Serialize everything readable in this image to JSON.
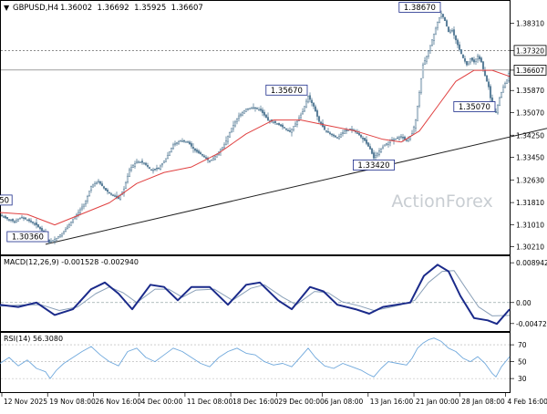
{
  "header": {
    "symbol": "GBPUSD,H4",
    "ohlc": "1.36002  1.36692  1.35925  1.36607"
  },
  "watermark": "ActionForex",
  "colors": {
    "candle": "#5a7f99",
    "ma": "#e04040",
    "macd": "#1a2a8a",
    "macd_signal": "#8aa0b8",
    "rsi": "#6fa8dc",
    "trendline": "#222222",
    "label_border": "#1a2a8a"
  },
  "chart_data": [
    {
      "type": "candlestick",
      "panel": "price",
      "title": "GBPUSD,H4",
      "ylim": [
        1.3003,
        1.3895
      ],
      "y_ticks": [
        "1.38310",
        "1.37320",
        "1.36607",
        "1.35870",
        "1.35070",
        "1.34250",
        "1.33450",
        "1.32630",
        "1.31810",
        "1.31010",
        "1.30210"
      ],
      "highlighted_ticks": [
        "1.37320",
        "1.36607"
      ],
      "x_labels": [
        "12 Nov 2025",
        "19 Nov 08:00",
        "26 Nov 16:00",
        "4 Dec 00:00",
        "11 Dec 08:00",
        "18 Dec 16:00",
        "29 Dec 00:00",
        "6 Jan 08:00",
        "13 Jan 16:00",
        "21 Jan 00:00",
        "28 Jan 08:00",
        "4 Feb 16:00"
      ],
      "price_path": [
        [
          0,
          1.3135
        ],
        [
          8,
          1.3122
        ],
        [
          16,
          1.3112
        ],
        [
          24,
          1.3128
        ],
        [
          32,
          1.3115
        ],
        [
          40,
          1.31
        ],
        [
          48,
          1.3072
        ],
        [
          54,
          1.3036
        ],
        [
          62,
          1.3052
        ],
        [
          70,
          1.3075
        ],
        [
          78,
          1.311
        ],
        [
          86,
          1.3145
        ],
        [
          94,
          1.3185
        ],
        [
          100,
          1.324
        ],
        [
          108,
          1.3258
        ],
        [
          116,
          1.3225
        ],
        [
          124,
          1.3208
        ],
        [
          130,
          1.3195
        ],
        [
          136,
          1.323
        ],
        [
          142,
          1.33
        ],
        [
          150,
          1.333
        ],
        [
          158,
          1.3325
        ],
        [
          166,
          1.3298
        ],
        [
          174,
          1.3305
        ],
        [
          182,
          1.334
        ],
        [
          190,
          1.339
        ],
        [
          198,
          1.3405
        ],
        [
          206,
          1.34
        ],
        [
          214,
          1.337
        ],
        [
          222,
          1.3352
        ],
        [
          230,
          1.333
        ],
        [
          238,
          1.3355
        ],
        [
          246,
          1.339
        ],
        [
          254,
          1.345
        ],
        [
          262,
          1.3495
        ],
        [
          270,
          1.352
        ],
        [
          278,
          1.3525
        ],
        [
          286,
          1.3515
        ],
        [
          294,
          1.348
        ],
        [
          302,
          1.347
        ],
        [
          310,
          1.3455
        ],
        [
          318,
          1.3438
        ],
        [
          326,
          1.3475
        ],
        [
          332,
          1.351
        ],
        [
          338,
          1.3567
        ],
        [
          344,
          1.353
        ],
        [
          350,
          1.3475
        ],
        [
          356,
          1.3445
        ],
        [
          362,
          1.343
        ],
        [
          370,
          1.3415
        ],
        [
          378,
          1.344
        ],
        [
          386,
          1.3448
        ],
        [
          394,
          1.3425
        ],
        [
          400,
          1.3405
        ],
        [
          406,
          1.3375
        ],
        [
          410,
          1.3342
        ],
        [
          416,
          1.3368
        ],
        [
          422,
          1.339
        ],
        [
          428,
          1.3405
        ],
        [
          434,
          1.3412
        ],
        [
          440,
          1.342
        ],
        [
          446,
          1.3405
        ],
        [
          452,
          1.343
        ],
        [
          456,
          1.348
        ],
        [
          460,
          1.358
        ],
        [
          464,
          1.368
        ],
        [
          468,
          1.371
        ],
        [
          472,
          1.375
        ],
        [
          476,
          1.379
        ],
        [
          480,
          1.3835
        ],
        [
          484,
          1.3867
        ],
        [
          488,
          1.384
        ],
        [
          492,
          1.38
        ],
        [
          496,
          1.3805
        ],
        [
          500,
          1.377
        ],
        [
          504,
          1.3735
        ],
        [
          508,
          1.3705
        ],
        [
          512,
          1.368
        ],
        [
          516,
          1.3702
        ],
        [
          520,
          1.369
        ],
        [
          524,
          1.3712
        ],
        [
          528,
          1.369
        ],
        [
          532,
          1.364
        ],
        [
          536,
          1.36
        ],
        [
          540,
          1.352
        ],
        [
          544,
          1.3507
        ],
        [
          548,
          1.356
        ],
        [
          552,
          1.36
        ],
        [
          556,
          1.3625
        ],
        [
          559,
          1.3661
        ]
      ],
      "moving_average": [
        [
          0,
          1.3145
        ],
        [
          30,
          1.3138
        ],
        [
          60,
          1.31
        ],
        [
          90,
          1.314
        ],
        [
          120,
          1.318
        ],
        [
          150,
          1.325
        ],
        [
          180,
          1.329
        ],
        [
          210,
          1.331
        ],
        [
          240,
          1.336
        ],
        [
          270,
          1.343
        ],
        [
          300,
          1.348
        ],
        [
          330,
          1.348
        ],
        [
          360,
          1.346
        ],
        [
          390,
          1.344
        ],
        [
          420,
          1.341
        ],
        [
          440,
          1.34
        ],
        [
          460,
          1.344
        ],
        [
          480,
          1.353
        ],
        [
          500,
          1.362
        ],
        [
          520,
          1.366
        ],
        [
          540,
          1.366
        ],
        [
          559,
          1.3638
        ]
      ],
      "trendline": [
        [
          50,
          1.303
        ],
        [
          600,
          1.345
        ]
      ],
      "reference_lines": [
        1.3732,
        1.3661
      ],
      "annotations": [
        {
          "label": "1.38670",
          "x": 484,
          "y": 1.3867,
          "position": "left"
        },
        {
          "label": "1.35670",
          "x": 338,
          "y": 1.3567,
          "position": "left"
        },
        {
          "label": "1.33420",
          "x": 410,
          "y": 1.3342,
          "position": "below"
        },
        {
          "label": "1.35070",
          "x": 544,
          "y": 1.3507,
          "position": "left"
        },
        {
          "label": "1.30360",
          "x": 54,
          "y": 1.3036,
          "position": "left"
        },
        {
          "label": "50",
          "x": 0,
          "y": 1.319,
          "position": "edge"
        }
      ]
    },
    {
      "type": "line",
      "panel": "indicator",
      "title": "MACD(12,26,9) -0.001528 -0.002940",
      "ylim": [
        -0.0062,
        0.01
      ],
      "y_ticks": [
        "0.008942",
        "0.00",
        "-0.004725"
      ],
      "series": [
        {
          "values": [
            [
              0,
              -0.0005
            ],
            [
              20,
              -0.001
            ],
            [
              40,
              0.0
            ],
            [
              60,
              -0.0028
            ],
            [
              80,
              -0.0015
            ],
            [
              100,
              0.003
            ],
            [
              115,
              0.0045
            ],
            [
              130,
              0.002
            ],
            [
              145,
              -0.0015
            ],
            [
              165,
              0.004
            ],
            [
              180,
              0.0035
            ],
            [
              195,
              0.0005
            ],
            [
              210,
              0.0035
            ],
            [
              230,
              0.0035
            ],
            [
              250,
              -0.0005
            ],
            [
              270,
              0.004
            ],
            [
              285,
              0.0045
            ],
            [
              305,
              0.0005
            ],
            [
              320,
              -0.0015
            ],
            [
              340,
              0.0035
            ],
            [
              355,
              0.0025
            ],
            [
              370,
              -0.0005
            ],
            [
              390,
              -0.0015
            ],
            [
              405,
              -0.0025
            ],
            [
              420,
              -0.001
            ],
            [
              435,
              -0.0005
            ],
            [
              450,
              0.0
            ],
            [
              465,
              0.006
            ],
            [
              480,
              0.0085
            ],
            [
              492,
              0.007
            ],
            [
              505,
              0.0015
            ],
            [
              520,
              -0.0035
            ],
            [
              535,
              -0.004
            ],
            [
              545,
              -0.0048
            ],
            [
              559,
              -0.0015
            ]
          ]
        },
        {
          "values": [
            [
              0,
              -0.0008
            ],
            [
              25,
              -0.0005
            ],
            [
              45,
              -0.0005
            ],
            [
              65,
              -0.0018
            ],
            [
              85,
              -0.001
            ],
            [
              105,
              0.002
            ],
            [
              120,
              0.0035
            ],
            [
              135,
              0.0022
            ],
            [
              150,
              0.0
            ],
            [
              170,
              0.003
            ],
            [
              185,
              0.003
            ],
            [
              200,
              0.0012
            ],
            [
              215,
              0.0028
            ],
            [
              235,
              0.003
            ],
            [
              255,
              0.0005
            ],
            [
              275,
              0.0032
            ],
            [
              290,
              0.004
            ],
            [
              310,
              0.0012
            ],
            [
              325,
              -0.0005
            ],
            [
              345,
              0.0025
            ],
            [
              360,
              0.0022
            ],
            [
              375,
              0.0002
            ],
            [
              395,
              -0.0008
            ],
            [
              410,
              -0.0018
            ],
            [
              425,
              -0.0012
            ],
            [
              440,
              -0.0005
            ],
            [
              455,
              0.0005
            ],
            [
              470,
              0.0045
            ],
            [
              485,
              0.007
            ],
            [
              498,
              0.0072
            ],
            [
              510,
              0.0035
            ],
            [
              525,
              -0.001
            ],
            [
              540,
              -0.003
            ],
            [
              559,
              -0.0029
            ]
          ]
        }
      ]
    },
    {
      "type": "line",
      "panel": "indicator",
      "title": "RSI(14) 56.3080",
      "ylim": [
        15,
        82
      ],
      "y_ticks": [
        "70",
        "50",
        "30"
      ],
      "series": [
        {
          "values": [
            [
              0,
              48
            ],
            [
              10,
              55
            ],
            [
              20,
              45
            ],
            [
              30,
              52
            ],
            [
              40,
              42
            ],
            [
              50,
              38
            ],
            [
              55,
              30
            ],
            [
              62,
              40
            ],
            [
              70,
              48
            ],
            [
              80,
              55
            ],
            [
              90,
              62
            ],
            [
              100,
              68
            ],
            [
              110,
              58
            ],
            [
              120,
              50
            ],
            [
              130,
              45
            ],
            [
              140,
              62
            ],
            [
              150,
              66
            ],
            [
              160,
              55
            ],
            [
              170,
              50
            ],
            [
              180,
              58
            ],
            [
              190,
              66
            ],
            [
              200,
              62
            ],
            [
              210,
              55
            ],
            [
              220,
              48
            ],
            [
              230,
              44
            ],
            [
              240,
              55
            ],
            [
              250,
              62
            ],
            [
              260,
              66
            ],
            [
              270,
              60
            ],
            [
              280,
              58
            ],
            [
              290,
              50
            ],
            [
              300,
              46
            ],
            [
              310,
              48
            ],
            [
              320,
              44
            ],
            [
              330,
              56
            ],
            [
              338,
              66
            ],
            [
              346,
              55
            ],
            [
              356,
              45
            ],
            [
              366,
              42
            ],
            [
              376,
              48
            ],
            [
              386,
              44
            ],
            [
              396,
              40
            ],
            [
              404,
              35
            ],
            [
              410,
              32
            ],
            [
              418,
              42
            ],
            [
              426,
              50
            ],
            [
              436,
              48
            ],
            [
              446,
              46
            ],
            [
              452,
              54
            ],
            [
              458,
              66
            ],
            [
              464,
              72
            ],
            [
              470,
              76
            ],
            [
              476,
              78
            ],
            [
              484,
              74
            ],
            [
              492,
              66
            ],
            [
              500,
              62
            ],
            [
              508,
              54
            ],
            [
              516,
              50
            ],
            [
              524,
              56
            ],
            [
              532,
              48
            ],
            [
              540,
              36
            ],
            [
              544,
              32
            ],
            [
              550,
              44
            ],
            [
              559,
              56
            ]
          ]
        }
      ]
    }
  ]
}
